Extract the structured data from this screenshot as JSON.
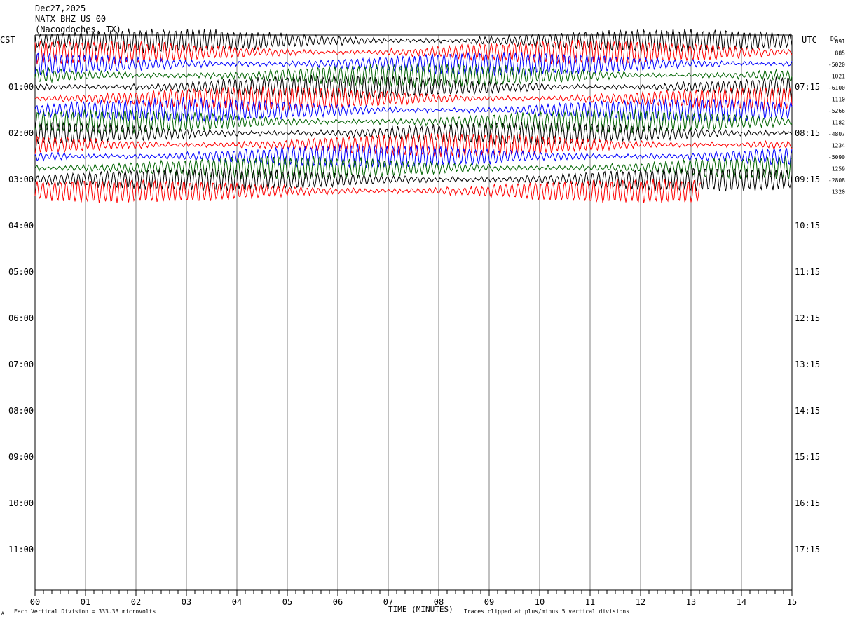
{
  "header": {
    "date": "Dec27,2025",
    "station": "NATX BHZ US 00",
    "location": "(Nacogdoches, TX)"
  },
  "tz_left": "CST",
  "tz_right": "UTC",
  "dc_label": "DC",
  "footer": {
    "scale_note": "Each Vertical Division =  333.33 microvolts",
    "x_title": "TIME (MINUTES)",
    "clip_note": "Traces clipped at plus/minus 5 vertical divisions",
    "corner_mark": "A"
  },
  "colors": {
    "trace_cycle": [
      "#000000",
      "#ff0000",
      "#0000ff",
      "#006400"
    ],
    "grid": "#808080"
  },
  "chart_data": {
    "type": "line",
    "title": "NATX BHZ US 00",
    "xlabel": "TIME (MINUTES)",
    "xlim": [
      0,
      15
    ],
    "x_ticks": [
      "00",
      "01",
      "02",
      "03",
      "04",
      "05",
      "06",
      "07",
      "08",
      "09",
      "10",
      "11",
      "12",
      "13",
      "14",
      "15"
    ],
    "row_minutes": 15,
    "left_time_labels": [
      "01:00",
      "02:00",
      "03:00",
      "04:00",
      "05:00",
      "06:00",
      "07:00",
      "08:00",
      "09:00",
      "10:00",
      "11:00"
    ],
    "right_time_labels": [
      "07:15",
      "08:15",
      "09:15",
      "10:15",
      "11:15",
      "12:15",
      "13:15",
      "14:15",
      "15:15",
      "16:15",
      "17:15"
    ],
    "dc_offsets": [
      "891",
      "885",
      "-5020",
      "1021",
      "-6100",
      "1110",
      "-5266",
      "1182",
      "-4807",
      "1234",
      "-5090",
      "1259",
      "-2808",
      "1320"
    ],
    "traces_recorded": 14,
    "last_trace_end_minute": 13.2,
    "vertical_division_microvolts": 333.33,
    "clip_divisions": 5
  }
}
